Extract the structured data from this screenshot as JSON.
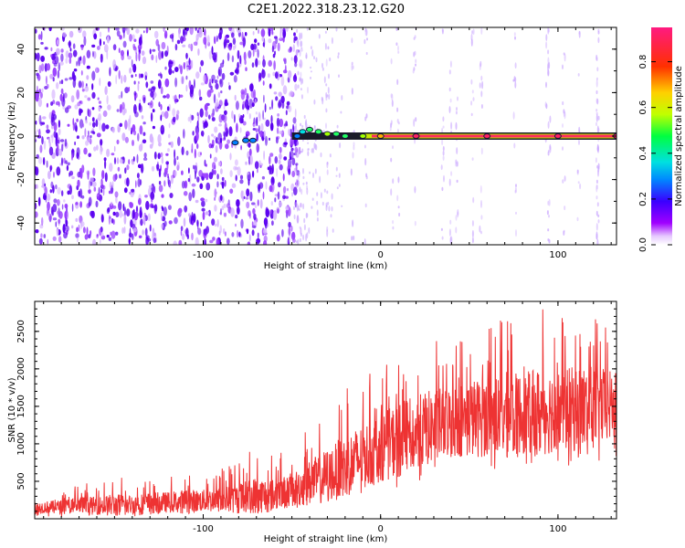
{
  "title": "C2E1.2022.318.23.12.G20",
  "chart_data": [
    {
      "type": "heatmap",
      "xlabel": "Height of straight line (km)",
      "ylabel": "Frequency (Hz)",
      "xlim": [
        -195,
        133
      ],
      "ylim": [
        -50,
        50
      ],
      "xticks": [
        -100,
        0,
        100
      ],
      "yticks": [
        -40,
        -20,
        0,
        20,
        40
      ],
      "colorbar": {
        "label": "Normalized spectral amplitude",
        "range": [
          0.0,
          0.95
        ],
        "ticks": [
          0.0,
          0.2,
          0.4,
          0.6,
          0.8
        ],
        "tick_labels": [
          "0.0",
          "0.2",
          "0.4",
          "0.6",
          "0.8"
        ]
      },
      "ridge": {
        "frequency_hz": 0,
        "start_km": -50,
        "end_km": 133,
        "description_points": [
          {
            "x": -82,
            "y": -3,
            "amp": 0.25
          },
          {
            "x": -76,
            "y": -2,
            "amp": 0.2
          },
          {
            "x": -72,
            "y": -2,
            "amp": 0.25
          },
          {
            "x": -47,
            "y": 0,
            "amp": 0.3
          },
          {
            "x": -44,
            "y": 2,
            "amp": 0.45
          },
          {
            "x": -40,
            "y": 3,
            "amp": 0.5
          },
          {
            "x": -35,
            "y": 2,
            "amp": 0.55
          },
          {
            "x": -30,
            "y": 1,
            "amp": 0.6
          },
          {
            "x": -25,
            "y": 1,
            "amp": 0.5
          },
          {
            "x": -20,
            "y": 0,
            "amp": 0.5
          },
          {
            "x": -10,
            "y": 0,
            "amp": 0.6
          },
          {
            "x": 0,
            "y": 0,
            "amp": 0.7
          },
          {
            "x": 20,
            "y": 0,
            "amp": 0.85
          },
          {
            "x": 60,
            "y": 0,
            "amp": 0.9
          },
          {
            "x": 100,
            "y": 0,
            "amp": 0.9
          },
          {
            "x": 133,
            "y": 0,
            "amp": 0.9
          }
        ]
      },
      "noise_field": {
        "dense_region_km": [
          -195,
          -50
        ],
        "sparse_region_km": [
          -50,
          133
        ],
        "dominant_amplitude": 0.05
      }
    },
    {
      "type": "line",
      "xlabel": "Height of straight line (km)",
      "ylabel": "SNR (10 * v/v)",
      "xlim": [
        -195,
        133
      ],
      "ylim": [
        0,
        2900
      ],
      "xticks": [
        -100,
        0,
        100
      ],
      "yticks": [
        500,
        1000,
        1500,
        2000,
        2500
      ],
      "color": "#ee3333",
      "series": [
        {
          "x": [
            -195,
            -180,
            -170,
            -160,
            -150,
            -140,
            -130,
            -120,
            -110,
            -100,
            -90,
            -80,
            -70,
            -60,
            -50,
            -40,
            -30,
            -20,
            -10,
            0,
            10,
            20,
            30,
            40,
            50,
            60,
            70,
            80,
            90,
            100,
            110,
            120,
            133
          ],
          "center": [
            150,
            160,
            170,
            175,
            180,
            190,
            200,
            220,
            230,
            240,
            250,
            270,
            290,
            320,
            380,
            480,
            580,
            700,
            820,
            950,
            1050,
            1150,
            1230,
            1300,
            1330,
            1360,
            1380,
            1400,
            1420,
            1450,
            1460,
            1480,
            1500
          ],
          "min": [
            20,
            20,
            20,
            20,
            30,
            30,
            40,
            50,
            50,
            60,
            60,
            70,
            80,
            90,
            100,
            150,
            200,
            250,
            300,
            350,
            400,
            500,
            550,
            600,
            600,
            650,
            650,
            650,
            700,
            700,
            700,
            750,
            750
          ],
          "max": [
            300,
            350,
            500,
            450,
            600,
            500,
            600,
            550,
            650,
            600,
            700,
            800,
            1100,
            850,
            950,
            1250,
            1500,
            1800,
            1900,
            2000,
            2200,
            2300,
            2400,
            2350,
            2500,
            2600,
            2800,
            2600,
            2900,
            2700,
            2800,
            2800,
            2400
          ]
        }
      ]
    }
  ]
}
